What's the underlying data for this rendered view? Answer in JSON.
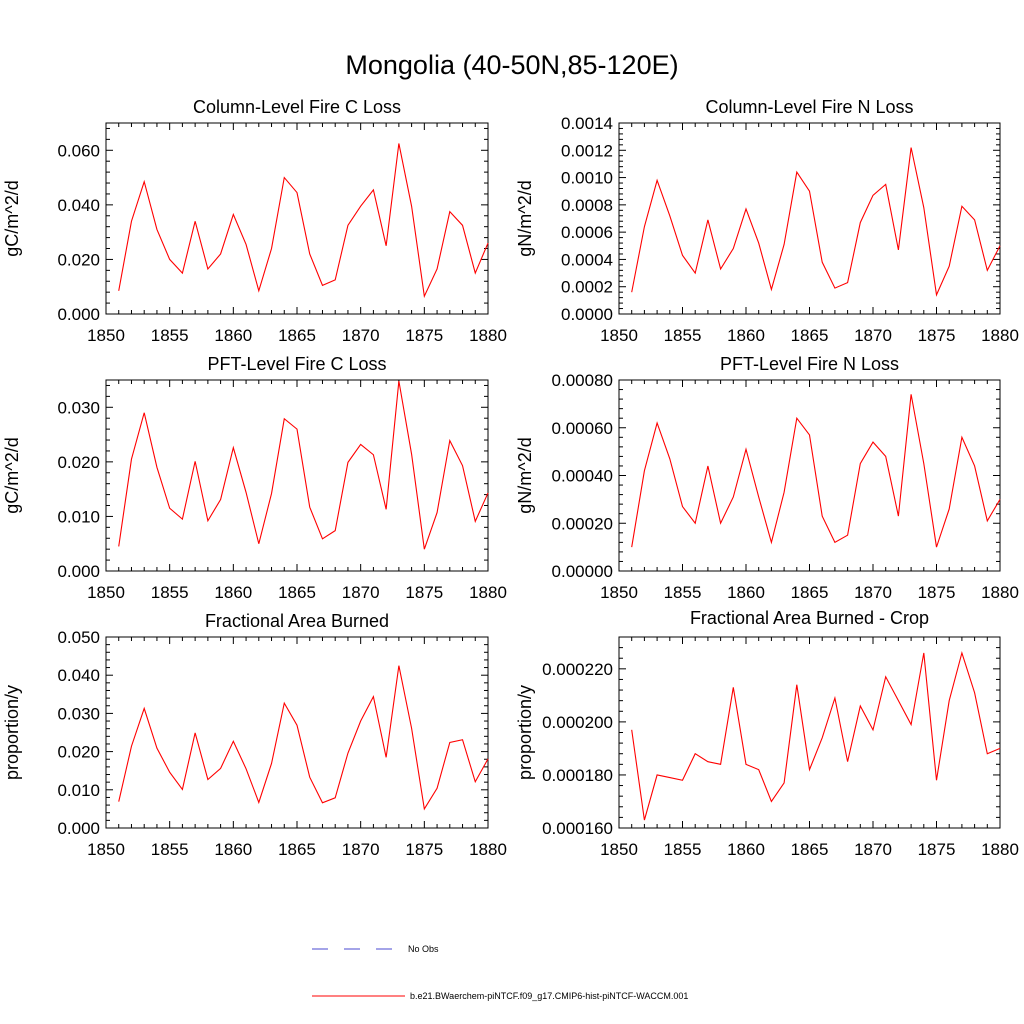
{
  "figure_title": "Mongolia (40-50N,85-120E)",
  "legend": {
    "entries": [
      {
        "label": "No Obs",
        "color": "#4a4ad0",
        "style": "dashed"
      },
      {
        "label": "b.e21.BWaerchem-piNTCF.f09_g17.CMIP6-hist-piNTCF-WACCM.001",
        "color": "#ff0000",
        "style": "solid"
      }
    ]
  },
  "chart_data": [
    {
      "type": "line",
      "title": "Column-Level Fire C Loss",
      "ylabel": "gC/m^2/d",
      "xlim": [
        1850,
        1880
      ],
      "ylim": [
        0,
        0.07
      ],
      "x_ticks": [
        "1850",
        "1855",
        "1860",
        "1865",
        "1870",
        "1875",
        "1880"
      ],
      "y_ticks": [
        "0.000",
        "0.020",
        "0.040",
        "0.060"
      ],
      "series": [
        {
          "color": "#ff0000",
          "x": [
            1851,
            1852,
            1853,
            1854,
            1855,
            1856,
            1857,
            1858,
            1859,
            1860,
            1861,
            1862,
            1863,
            1864,
            1865,
            1866,
            1867,
            1868,
            1869,
            1870,
            1871,
            1872,
            1873,
            1874,
            1875,
            1876,
            1877,
            1878,
            1879,
            1880
          ],
          "values": [
            0.0085,
            0.034,
            0.0485,
            0.031,
            0.02,
            0.015,
            0.034,
            0.0165,
            0.022,
            0.0365,
            0.0255,
            0.0085,
            0.024,
            0.05,
            0.0445,
            0.022,
            0.0105,
            0.0125,
            0.0325,
            0.0395,
            0.0455,
            0.025,
            0.0625,
            0.0395,
            0.0065,
            0.0165,
            0.0375,
            0.0325,
            0.015,
            0.026
          ]
        }
      ]
    },
    {
      "type": "line",
      "title": "Column-Level Fire N Loss",
      "ylabel": "gN/m^2/d",
      "xlim": [
        1850,
        1880
      ],
      "ylim": [
        0,
        0.0014
      ],
      "x_ticks": [
        "1850",
        "1855",
        "1860",
        "1865",
        "1870",
        "1875",
        "1880"
      ],
      "y_ticks": [
        "0.0000",
        "0.0002",
        "0.0004",
        "0.0006",
        "0.0008",
        "0.0010",
        "0.0012",
        "0.0014"
      ],
      "series": [
        {
          "color": "#ff0000",
          "x": [
            1851,
            1852,
            1853,
            1854,
            1855,
            1856,
            1857,
            1858,
            1859,
            1860,
            1861,
            1862,
            1863,
            1864,
            1865,
            1866,
            1867,
            1868,
            1869,
            1870,
            1871,
            1872,
            1873,
            1874,
            1875,
            1876,
            1877,
            1878,
            1879,
            1880
          ],
          "values": [
            0.00016,
            0.00064,
            0.00098,
            0.00072,
            0.00043,
            0.0003,
            0.00069,
            0.00033,
            0.00048,
            0.00077,
            0.00052,
            0.00018,
            0.00051,
            0.00104,
            0.0009,
            0.00038,
            0.00019,
            0.00023,
            0.00067,
            0.00087,
            0.00095,
            0.00047,
            0.00122,
            0.00078,
            0.00014,
            0.00035,
            0.00079,
            0.00069,
            0.00032,
            0.0005
          ]
        }
      ]
    },
    {
      "type": "line",
      "title": "PFT-Level Fire C Loss",
      "ylabel": "gC/m^2/d",
      "xlim": [
        1850,
        1880
      ],
      "ylim": [
        0,
        0.035
      ],
      "x_ticks": [
        "1850",
        "1855",
        "1860",
        "1865",
        "1870",
        "1875",
        "1880"
      ],
      "y_ticks": [
        "0.000",
        "0.010",
        "0.020",
        "0.030"
      ],
      "series": [
        {
          "color": "#ff0000",
          "x": [
            1851,
            1852,
            1853,
            1854,
            1855,
            1856,
            1857,
            1858,
            1859,
            1860,
            1861,
            1862,
            1863,
            1864,
            1865,
            1866,
            1867,
            1868,
            1869,
            1870,
            1871,
            1872,
            1873,
            1874,
            1875,
            1876,
            1877,
            1878,
            1879,
            1880
          ],
          "values": [
            0.0045,
            0.0205,
            0.029,
            0.019,
            0.0115,
            0.0095,
            0.0201,
            0.0092,
            0.0131,
            0.0226,
            0.0144,
            0.005,
            0.0142,
            0.0279,
            0.026,
            0.0117,
            0.0059,
            0.0074,
            0.0199,
            0.0232,
            0.0213,
            0.0113,
            0.0348,
            0.0214,
            0.004,
            0.0107,
            0.0239,
            0.0193,
            0.0091,
            0.0143
          ]
        }
      ]
    },
    {
      "type": "line",
      "title": "PFT-Level Fire N Loss",
      "ylabel": "gN/m^2/d",
      "xlim": [
        1850,
        1880
      ],
      "ylim": [
        0,
        0.0008
      ],
      "x_ticks": [
        "1850",
        "1855",
        "1860",
        "1865",
        "1870",
        "1875",
        "1880"
      ],
      "y_ticks": [
        "0.00000",
        "0.00020",
        "0.00040",
        "0.00060",
        "0.00080"
      ],
      "series": [
        {
          "color": "#ff0000",
          "x": [
            1851,
            1852,
            1853,
            1854,
            1855,
            1856,
            1857,
            1858,
            1859,
            1860,
            1861,
            1862,
            1863,
            1864,
            1865,
            1866,
            1867,
            1868,
            1869,
            1870,
            1871,
            1872,
            1873,
            1874,
            1875,
            1876,
            1877,
            1878,
            1879,
            1880
          ],
          "values": [
            0.0001,
            0.00042,
            0.00062,
            0.00047,
            0.00027,
            0.0002,
            0.00044,
            0.0002,
            0.00031,
            0.00051,
            0.00031,
            0.00012,
            0.00033,
            0.00064,
            0.00057,
            0.00023,
            0.00012,
            0.00015,
            0.00045,
            0.00054,
            0.00048,
            0.00023,
            0.00074,
            0.00045,
            0.0001,
            0.00026,
            0.00056,
            0.00044,
            0.00021,
            0.0003
          ]
        }
      ]
    },
    {
      "type": "line",
      "title": "Fractional Area Burned",
      "ylabel": "proportion/y",
      "xlim": [
        1850,
        1880
      ],
      "ylim": [
        0,
        0.05
      ],
      "x_ticks": [
        "1850",
        "1855",
        "1860",
        "1865",
        "1870",
        "1875",
        "1880"
      ],
      "y_ticks": [
        "0.000",
        "0.010",
        "0.020",
        "0.030",
        "0.040",
        "0.050"
      ],
      "series": [
        {
          "color": "#ff0000",
          "x": [
            1851,
            1852,
            1853,
            1854,
            1855,
            1856,
            1857,
            1858,
            1859,
            1860,
            1861,
            1862,
            1863,
            1864,
            1865,
            1866,
            1867,
            1868,
            1869,
            1870,
            1871,
            1872,
            1873,
            1874,
            1875,
            1876,
            1877,
            1878,
            1879,
            1880
          ],
          "values": [
            0.0069,
            0.0214,
            0.0313,
            0.0209,
            0.0146,
            0.0101,
            0.0249,
            0.0127,
            0.0156,
            0.0227,
            0.0155,
            0.0067,
            0.0169,
            0.0327,
            0.0269,
            0.0133,
            0.0066,
            0.0079,
            0.0196,
            0.028,
            0.0344,
            0.0185,
            0.0425,
            0.0261,
            0.005,
            0.0104,
            0.0224,
            0.0231,
            0.0121,
            0.0181
          ]
        }
      ]
    },
    {
      "type": "line",
      "title": "Fractional Area Burned - Crop",
      "ylabel": "proportion/y",
      "xlim": [
        1850,
        1880
      ],
      "ylim": [
        0.00016,
        0.000232
      ],
      "x_ticks": [
        "1850",
        "1855",
        "1860",
        "1865",
        "1870",
        "1875",
        "1880"
      ],
      "y_ticks": [
        "0.000160",
        "0.000180",
        "0.000200",
        "0.000220"
      ],
      "series": [
        {
          "color": "#ff0000",
          "x": [
            1851,
            1852,
            1853,
            1854,
            1855,
            1856,
            1857,
            1858,
            1859,
            1860,
            1861,
            1862,
            1863,
            1864,
            1865,
            1866,
            1867,
            1868,
            1869,
            1870,
            1871,
            1872,
            1873,
            1874,
            1875,
            1876,
            1877,
            1878,
            1879,
            1880
          ],
          "values": [
            0.000197,
            0.000163,
            0.00018,
            0.000179,
            0.000178,
            0.000188,
            0.000185,
            0.000184,
            0.000213,
            0.000184,
            0.000182,
            0.00017,
            0.000177,
            0.000214,
            0.000182,
            0.000194,
            0.000209,
            0.000185,
            0.000206,
            0.000197,
            0.000217,
            0.000208,
            0.000199,
            0.000226,
            0.000178,
            0.000208,
            0.000226,
            0.000211,
            0.000188,
            0.00019
          ]
        }
      ]
    }
  ]
}
